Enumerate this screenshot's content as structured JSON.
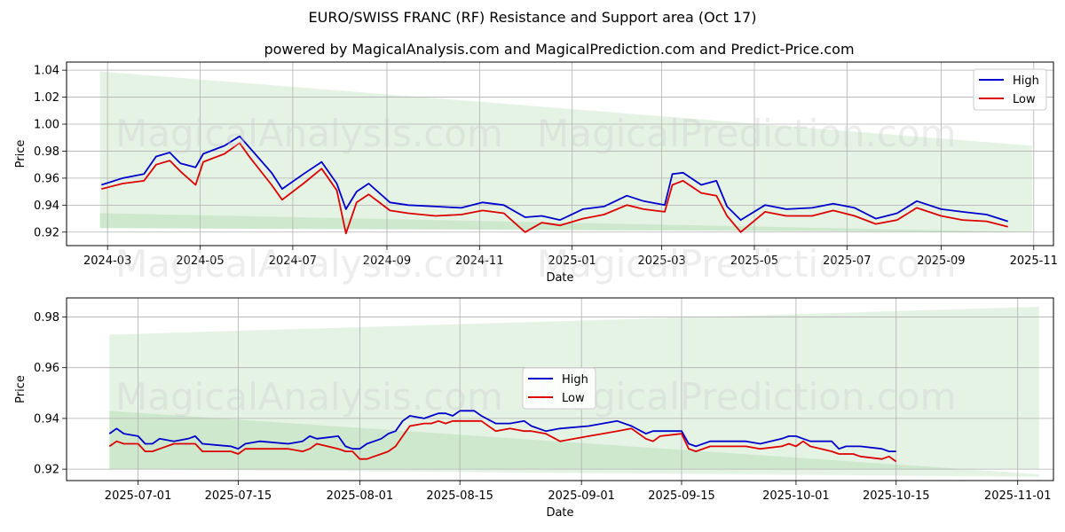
{
  "title": "EURO/SWISS FRANC (RF) Resistance and Support area (Oct 17)",
  "subtitle": "powered by MagicalAnalysis.com and MagicalPrediction.com and Predict-Price.com",
  "watermarks": [
    "MagicalAnalysis.com",
    "MagicalPrediction.com"
  ],
  "colors": {
    "high": "#0000cc",
    "low": "#dd0000",
    "band": "#2ca02c",
    "grid": "#b0b0b0"
  },
  "chart_data": [
    {
      "type": "line",
      "name": "full-period",
      "xlabel": "Date",
      "ylabel": "Price",
      "grid": true,
      "legend": "top-right",
      "xlim": [
        "2024-02-03",
        "2025-11-14"
      ],
      "ylim": [
        0.91,
        1.046
      ],
      "x_ticks": [
        "2024-03",
        "2024-05",
        "2024-07",
        "2024-09",
        "2024-11",
        "2025-01",
        "2025-03",
        "2025-05",
        "2025-07",
        "2025-09",
        "2025-11"
      ],
      "y_ticks": [
        "0.92",
        "0.94",
        "0.96",
        "0.98",
        "1.00",
        "1.02",
        "1.04"
      ],
      "bands": [
        {
          "name": "resistance-band",
          "x": [
            "2024-02-25",
            "2025-10-31"
          ],
          "top": [
            1.039,
            0.984
          ],
          "bottom": [
            0.923,
            0.92
          ]
        },
        {
          "name": "support-band",
          "x": [
            "2024-02-25",
            "2025-10-31"
          ],
          "top": [
            0.934,
            0.92
          ],
          "bottom": [
            0.923,
            0.92
          ]
        }
      ],
      "series": [
        {
          "name": "High",
          "key": "high",
          "x": [
            "2024-02-26",
            "2024-03-11",
            "2024-03-25",
            "2024-04-02",
            "2024-04-11",
            "2024-04-18",
            "2024-04-28",
            "2024-05-03",
            "2024-05-17",
            "2024-05-27",
            "2024-06-03",
            "2024-06-17",
            "2024-06-24",
            "2024-07-08",
            "2024-07-20",
            "2024-07-30",
            "2024-08-05",
            "2024-08-12",
            "2024-08-20",
            "2024-09-03",
            "2024-09-15",
            "2024-10-03",
            "2024-10-20",
            "2024-11-03",
            "2024-11-17",
            "2024-12-01",
            "2024-12-12",
            "2024-12-24",
            "2025-01-08",
            "2025-01-22",
            "2025-02-06",
            "2025-02-17",
            "2025-03-03",
            "2025-03-08",
            "2025-03-15",
            "2025-03-27",
            "2025-04-06",
            "2025-04-13",
            "2025-04-22",
            "2025-05-08",
            "2025-05-22",
            "2025-06-08",
            "2025-06-22",
            "2025-07-06",
            "2025-07-20",
            "2025-08-03",
            "2025-08-16",
            "2025-09-01",
            "2025-09-15",
            "2025-10-01",
            "2025-10-15"
          ],
          "values": [
            0.955,
            0.96,
            0.963,
            0.976,
            0.979,
            0.971,
            0.968,
            0.978,
            0.984,
            0.991,
            0.982,
            0.964,
            0.952,
            0.963,
            0.972,
            0.956,
            0.937,
            0.95,
            0.956,
            0.942,
            0.94,
            0.939,
            0.938,
            0.942,
            0.94,
            0.931,
            0.932,
            0.929,
            0.937,
            0.939,
            0.947,
            0.943,
            0.94,
            0.963,
            0.964,
            0.955,
            0.958,
            0.939,
            0.929,
            0.94,
            0.937,
            0.938,
            0.941,
            0.938,
            0.93,
            0.934,
            0.943,
            0.937,
            0.935,
            0.933,
            0.928
          ]
        },
        {
          "name": "Low",
          "key": "low",
          "x": [
            "2024-02-26",
            "2024-03-11",
            "2024-03-25",
            "2024-04-02",
            "2024-04-11",
            "2024-04-18",
            "2024-04-28",
            "2024-05-03",
            "2024-05-17",
            "2024-05-27",
            "2024-06-03",
            "2024-06-17",
            "2024-06-24",
            "2024-07-08",
            "2024-07-20",
            "2024-07-30",
            "2024-08-05",
            "2024-08-12",
            "2024-08-20",
            "2024-09-03",
            "2024-09-15",
            "2024-10-03",
            "2024-10-20",
            "2024-11-03",
            "2024-11-17",
            "2024-12-01",
            "2024-12-12",
            "2024-12-24",
            "2025-01-08",
            "2025-01-22",
            "2025-02-06",
            "2025-02-17",
            "2025-03-03",
            "2025-03-08",
            "2025-03-15",
            "2025-03-27",
            "2025-04-06",
            "2025-04-13",
            "2025-04-22",
            "2025-05-08",
            "2025-05-22",
            "2025-06-08",
            "2025-06-22",
            "2025-07-06",
            "2025-07-20",
            "2025-08-03",
            "2025-08-16",
            "2025-09-01",
            "2025-09-15",
            "2025-10-01",
            "2025-10-15"
          ],
          "values": [
            0.952,
            0.956,
            0.958,
            0.97,
            0.973,
            0.965,
            0.955,
            0.972,
            0.978,
            0.986,
            0.975,
            0.955,
            0.944,
            0.956,
            0.967,
            0.951,
            0.919,
            0.942,
            0.948,
            0.936,
            0.934,
            0.932,
            0.933,
            0.936,
            0.934,
            0.92,
            0.927,
            0.925,
            0.93,
            0.933,
            0.94,
            0.937,
            0.935,
            0.955,
            0.958,
            0.949,
            0.947,
            0.932,
            0.92,
            0.935,
            0.932,
            0.932,
            0.936,
            0.932,
            0.926,
            0.929,
            0.938,
            0.932,
            0.929,
            0.928,
            0.924
          ]
        }
      ]
    },
    {
      "type": "line",
      "name": "recent-period",
      "xlabel": "Date",
      "ylabel": "Price",
      "grid": true,
      "legend": "center",
      "xlim": [
        "2025-06-21",
        "2025-11-06"
      ],
      "ylim": [
        0.9155,
        0.9875
      ],
      "x_ticks": [
        "2025-07-01",
        "2025-07-15",
        "2025-08-01",
        "2025-08-15",
        "2025-09-01",
        "2025-09-15",
        "2025-10-01",
        "2025-10-15",
        "2025-11-01"
      ],
      "y_ticks": [
        "0.92",
        "0.94",
        "0.96",
        "0.98"
      ],
      "bands": [
        {
          "name": "resistance-band",
          "x": [
            "2025-06-27",
            "2025-11-04"
          ],
          "top": [
            0.973,
            0.984
          ],
          "bottom": [
            0.92,
            0.92
          ]
        },
        {
          "name": "support-band",
          "x": [
            "2025-06-27",
            "2025-11-04"
          ],
          "top": [
            0.943,
            0.918
          ],
          "bottom": [
            0.92,
            0.917
          ]
        }
      ],
      "series": [
        {
          "name": "High",
          "key": "high",
          "x": [
            "2025-06-27",
            "2025-06-28",
            "2025-06-29",
            "2025-07-01",
            "2025-07-02",
            "2025-07-03",
            "2025-07-04",
            "2025-07-06",
            "2025-07-08",
            "2025-07-09",
            "2025-07-10",
            "2025-07-14",
            "2025-07-15",
            "2025-07-16",
            "2025-07-18",
            "2025-07-22",
            "2025-07-24",
            "2025-07-25",
            "2025-07-26",
            "2025-07-29",
            "2025-07-30",
            "2025-07-31",
            "2025-08-01",
            "2025-08-02",
            "2025-08-03",
            "2025-08-04",
            "2025-08-05",
            "2025-08-06",
            "2025-08-07",
            "2025-08-08",
            "2025-08-10",
            "2025-08-11",
            "2025-08-12",
            "2025-08-13",
            "2025-08-14",
            "2025-08-15",
            "2025-08-17",
            "2025-08-18",
            "2025-08-20",
            "2025-08-22",
            "2025-08-24",
            "2025-08-25",
            "2025-08-27",
            "2025-08-29",
            "2025-09-02",
            "2025-09-04",
            "2025-09-06",
            "2025-09-08",
            "2025-09-10",
            "2025-09-11",
            "2025-09-12",
            "2025-09-15",
            "2025-09-16",
            "2025-09-17",
            "2025-09-19",
            "2025-09-23",
            "2025-09-24",
            "2025-09-26",
            "2025-09-29",
            "2025-09-30",
            "2025-10-01",
            "2025-10-02",
            "2025-10-03",
            "2025-10-06",
            "2025-10-07",
            "2025-10-08",
            "2025-10-09",
            "2025-10-10",
            "2025-10-13",
            "2025-10-14",
            "2025-10-15"
          ],
          "values": [
            0.934,
            0.936,
            0.934,
            0.933,
            0.93,
            0.93,
            0.932,
            0.931,
            0.932,
            0.933,
            0.93,
            0.929,
            0.928,
            0.93,
            0.931,
            0.93,
            0.931,
            0.933,
            0.932,
            0.933,
            0.929,
            0.928,
            0.928,
            0.93,
            0.931,
            0.932,
            0.934,
            0.935,
            0.939,
            0.941,
            0.94,
            0.941,
            0.942,
            0.942,
            0.941,
            0.943,
            0.943,
            0.941,
            0.938,
            0.938,
            0.939,
            0.937,
            0.935,
            0.936,
            0.937,
            0.938,
            0.939,
            0.937,
            0.934,
            0.935,
            0.935,
            0.935,
            0.93,
            0.929,
            0.931,
            0.931,
            0.931,
            0.93,
            0.932,
            0.933,
            0.933,
            0.932,
            0.931,
            0.931,
            0.928,
            0.929,
            0.929,
            0.929,
            0.928,
            0.927,
            0.927
          ]
        },
        {
          "name": "Low",
          "key": "low",
          "x": [
            "2025-06-27",
            "2025-06-28",
            "2025-06-29",
            "2025-07-01",
            "2025-07-02",
            "2025-07-03",
            "2025-07-04",
            "2025-07-06",
            "2025-07-08",
            "2025-07-09",
            "2025-07-10",
            "2025-07-14",
            "2025-07-15",
            "2025-07-16",
            "2025-07-18",
            "2025-07-22",
            "2025-07-24",
            "2025-07-25",
            "2025-07-26",
            "2025-07-29",
            "2025-07-30",
            "2025-07-31",
            "2025-08-01",
            "2025-08-02",
            "2025-08-03",
            "2025-08-04",
            "2025-08-05",
            "2025-08-06",
            "2025-08-07",
            "2025-08-08",
            "2025-08-10",
            "2025-08-11",
            "2025-08-12",
            "2025-08-13",
            "2025-08-14",
            "2025-08-15",
            "2025-08-17",
            "2025-08-18",
            "2025-08-20",
            "2025-08-22",
            "2025-08-24",
            "2025-08-25",
            "2025-08-27",
            "2025-08-29",
            "2025-09-02",
            "2025-09-04",
            "2025-09-06",
            "2025-09-08",
            "2025-09-10",
            "2025-09-11",
            "2025-09-12",
            "2025-09-15",
            "2025-09-16",
            "2025-09-17",
            "2025-09-19",
            "2025-09-23",
            "2025-09-24",
            "2025-09-26",
            "2025-09-29",
            "2025-09-30",
            "2025-10-01",
            "2025-10-02",
            "2025-10-03",
            "2025-10-06",
            "2025-10-07",
            "2025-10-08",
            "2025-10-09",
            "2025-10-10",
            "2025-10-13",
            "2025-10-14",
            "2025-10-15"
          ],
          "values": [
            0.929,
            0.931,
            0.93,
            0.93,
            0.927,
            0.927,
            0.928,
            0.93,
            0.93,
            0.93,
            0.927,
            0.927,
            0.926,
            0.928,
            0.928,
            0.928,
            0.927,
            0.928,
            0.93,
            0.928,
            0.927,
            0.927,
            0.924,
            0.924,
            0.925,
            0.926,
            0.927,
            0.929,
            0.933,
            0.937,
            0.938,
            0.938,
            0.939,
            0.938,
            0.939,
            0.939,
            0.939,
            0.939,
            0.935,
            0.936,
            0.935,
            0.935,
            0.934,
            0.931,
            0.933,
            0.934,
            0.935,
            0.936,
            0.932,
            0.931,
            0.933,
            0.934,
            0.928,
            0.927,
            0.929,
            0.929,
            0.929,
            0.928,
            0.929,
            0.93,
            0.929,
            0.931,
            0.929,
            0.927,
            0.926,
            0.926,
            0.926,
            0.925,
            0.924,
            0.925,
            0.923
          ]
        }
      ]
    }
  ]
}
